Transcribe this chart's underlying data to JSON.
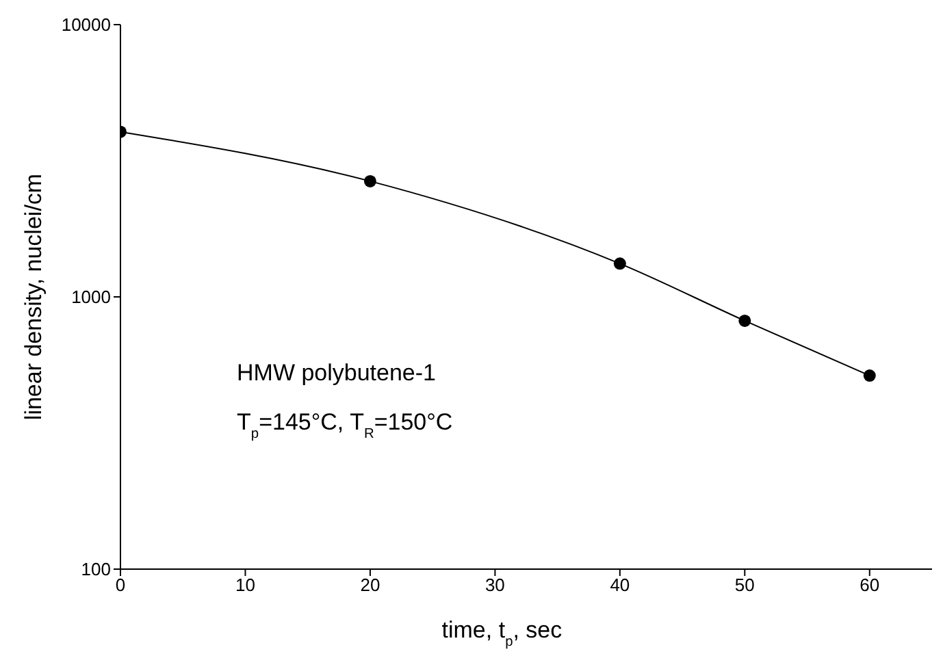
{
  "chart_data": {
    "type": "line",
    "xlabel": "time, t$_{p}$, sec",
    "ylabel": "linear density, nuclei/cm",
    "annotations": [
      "HMW polybutene-1",
      "T$_{p}$=145°C, T$_{R}$=150°C"
    ],
    "x": [
      0,
      20,
      40,
      50,
      60
    ],
    "series": [
      {
        "color": "#000000",
        "values": [
          4040,
          2660,
          1325,
          817,
          514
        ]
      }
    ],
    "xlim": [
      0,
      65
    ],
    "xticks": [
      0,
      10,
      20,
      30,
      40,
      50,
      60
    ],
    "ylim": [
      100,
      10000
    ],
    "yticks": [
      100,
      1000,
      10000
    ],
    "log": "y",
    "marker": "circle",
    "line_style": "solid"
  }
}
